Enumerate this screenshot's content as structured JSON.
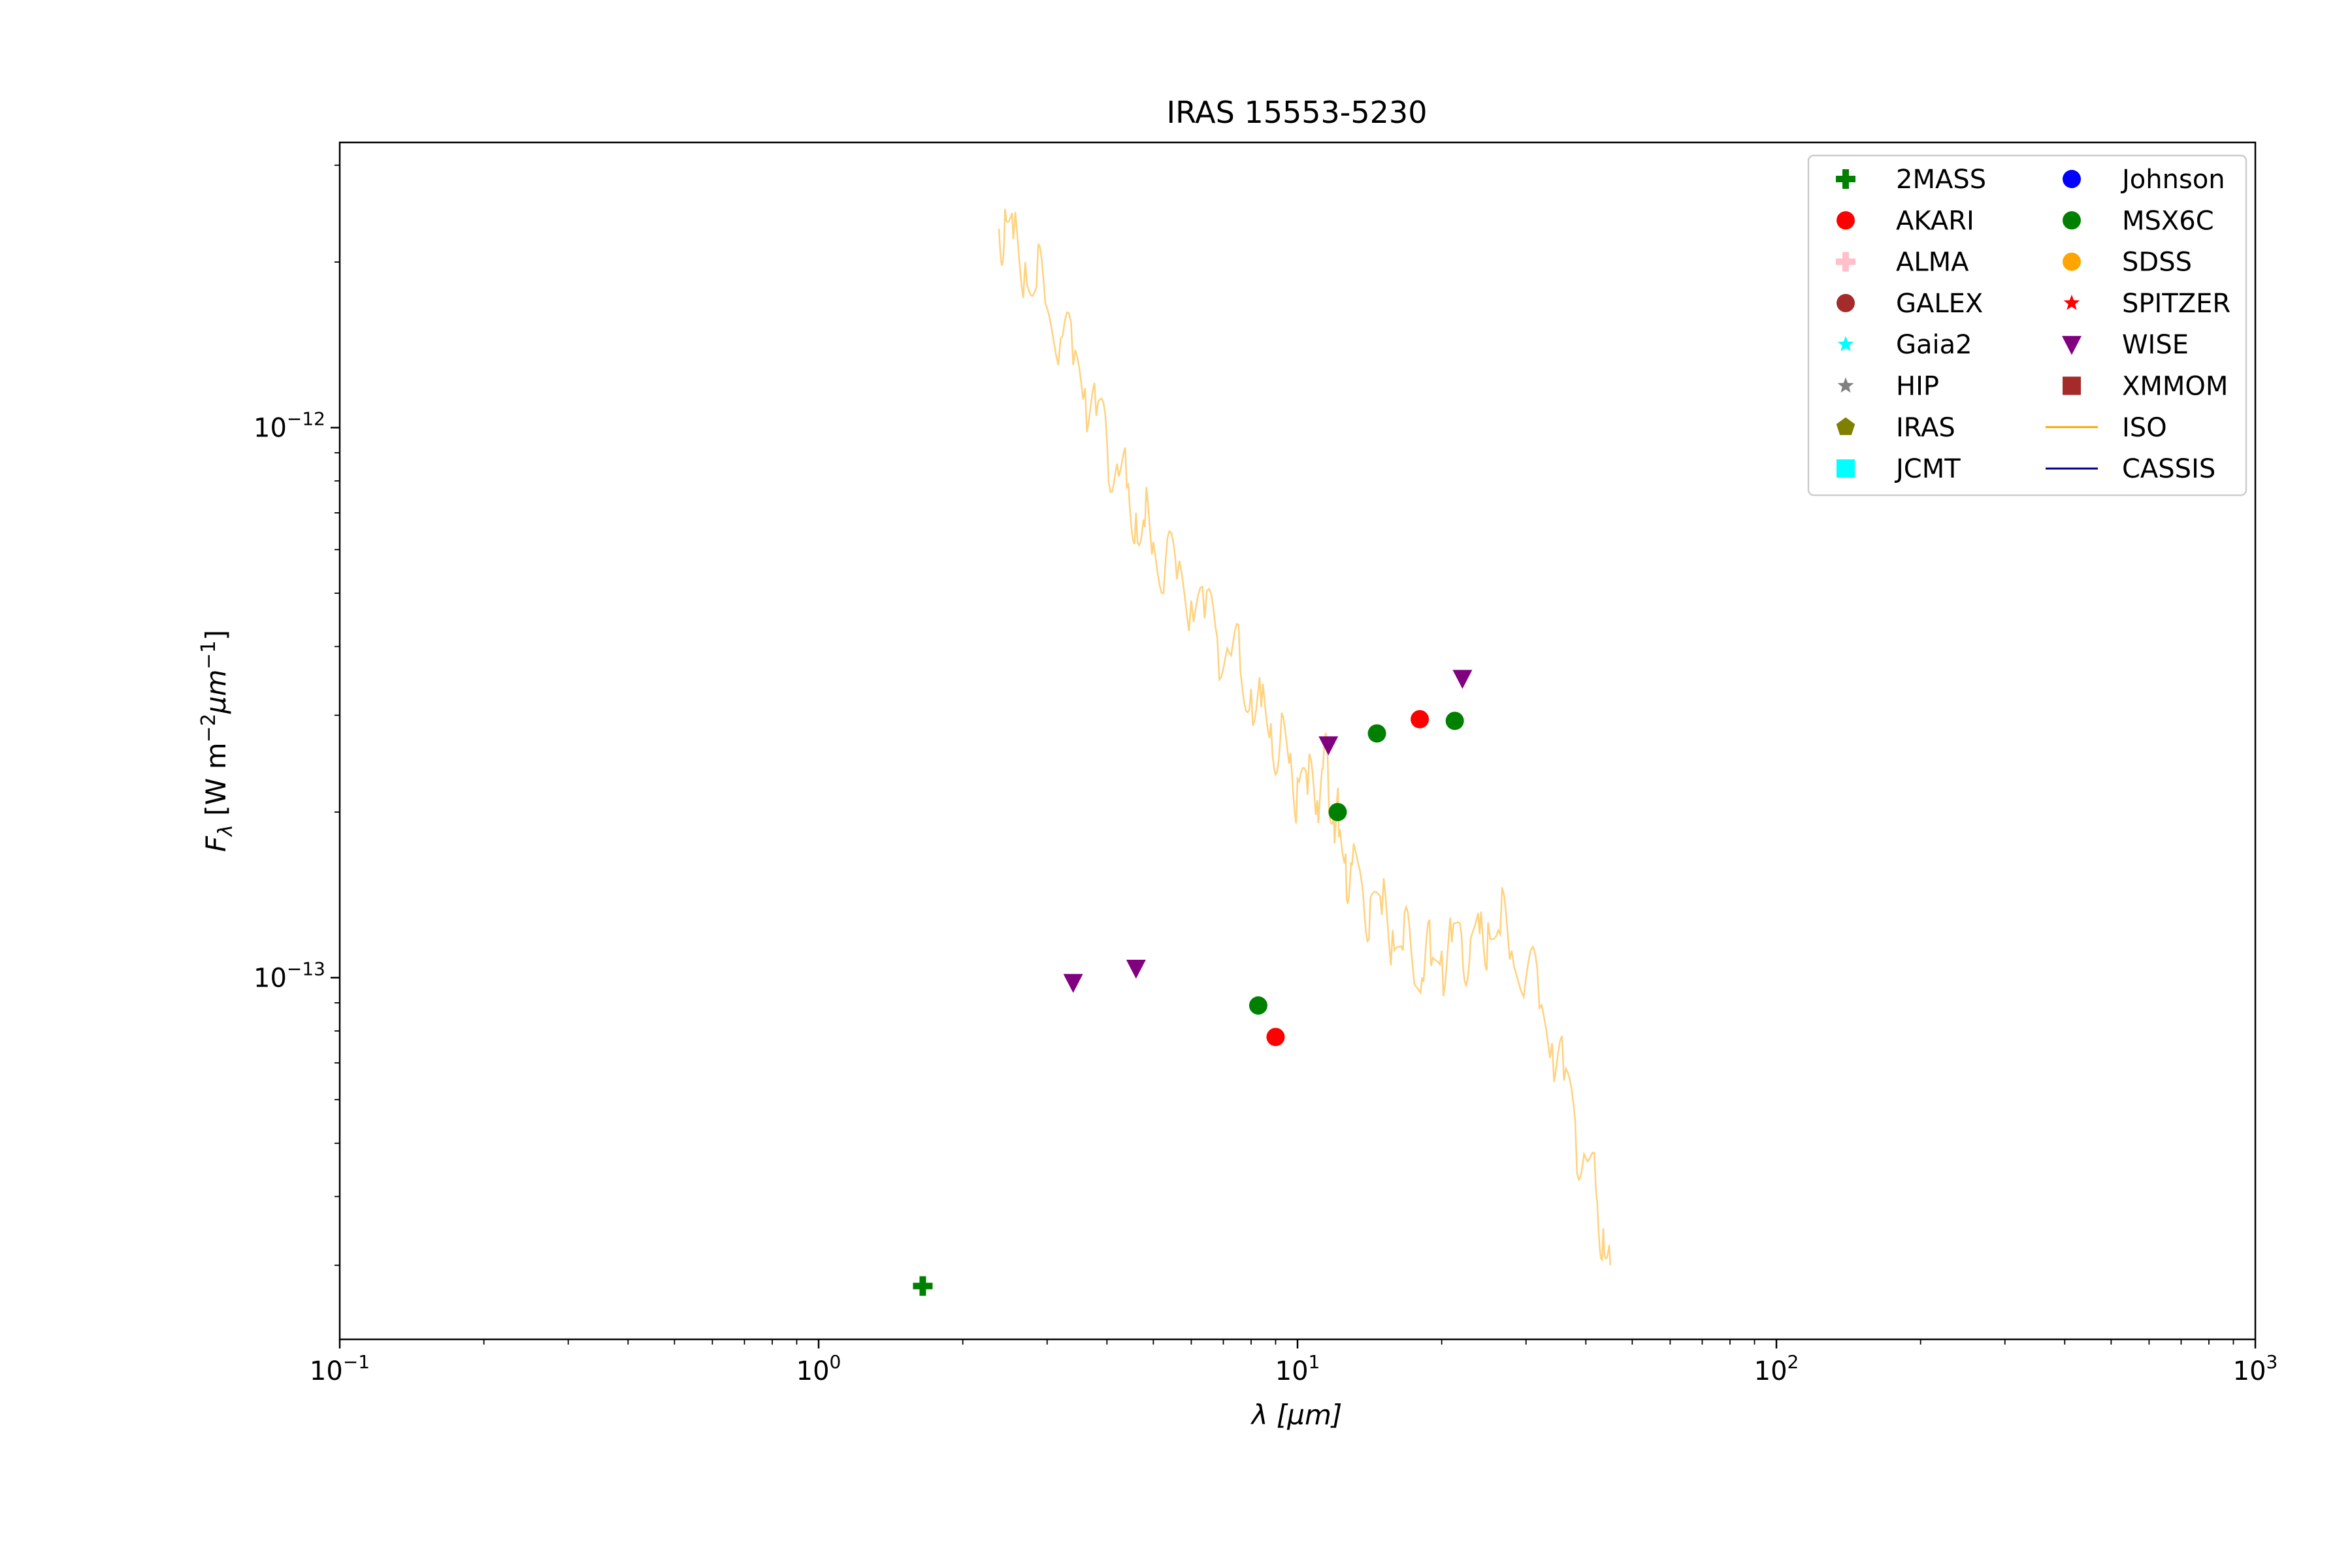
{
  "chart_data": {
    "type": "scatter",
    "title": "IRAS 15553-5230",
    "x_scale": "log",
    "y_scale": "log",
    "xlim": [
      0.1,
      1000
    ],
    "ylim": [
      2.2e-14,
      3.3e-12
    ],
    "xlabel": "λ [μm]",
    "ylabel": {
      "main": "F",
      "sub": "λ",
      "units_a": " [W m",
      "exp_a": "−2",
      "units_b": "μm",
      "exp_b": "−1",
      "units_c": "]"
    },
    "x_ticks": [
      {
        "value": 0.1,
        "base": "10",
        "exp": "−1"
      },
      {
        "value": 1,
        "base": "10",
        "exp": "0"
      },
      {
        "value": 10,
        "base": "10",
        "exp": "1"
      },
      {
        "value": 100,
        "base": "10",
        "exp": "2"
      },
      {
        "value": 1000,
        "base": "10",
        "exp": "3"
      }
    ],
    "y_ticks": [
      {
        "value": 1e-12,
        "base": "10",
        "exp": "−12"
      },
      {
        "value": 1e-13,
        "base": "10",
        "exp": "−13"
      }
    ],
    "legend_position": "top-right",
    "legend": [
      {
        "name": "2MASS",
        "marker": "plus",
        "color": "#008000"
      },
      {
        "name": "AKARI",
        "marker": "circle",
        "color": "#ff0000"
      },
      {
        "name": "ALMA",
        "marker": "plus",
        "color": "#ffc0cb"
      },
      {
        "name": "GALEX",
        "marker": "circle",
        "color": "#a52a2a"
      },
      {
        "name": "Gaia2",
        "marker": "star",
        "color": "#00ffff"
      },
      {
        "name": "HIP",
        "marker": "star",
        "color": "#808080"
      },
      {
        "name": "IRAS",
        "marker": "pentagon",
        "color": "#808000"
      },
      {
        "name": "JCMT",
        "marker": "square",
        "color": "#00ffff"
      },
      {
        "name": "Johnson",
        "marker": "circle",
        "color": "#0000ff"
      },
      {
        "name": "MSX6C",
        "marker": "circle",
        "color": "#008000"
      },
      {
        "name": "SDSS",
        "marker": "circle",
        "color": "#ffa500"
      },
      {
        "name": "SPITZER",
        "marker": "star",
        "color": "#ff0000"
      },
      {
        "name": "WISE",
        "marker": "triangle-down",
        "color": "#800080"
      },
      {
        "name": "XMMOM",
        "marker": "square",
        "color": "#a52a2a"
      },
      {
        "name": "ISO",
        "marker": "line",
        "color": "#ffa500"
      },
      {
        "name": "CASSIS",
        "marker": "line",
        "color": "#00008b"
      }
    ],
    "points": [
      {
        "survey": "2MASS",
        "x": 1.65,
        "y": 2.75e-14
      },
      {
        "survey": "WISE",
        "x": 3.4,
        "y": 9.8e-14
      },
      {
        "survey": "WISE",
        "x": 4.6,
        "y": 1.04e-13
      },
      {
        "survey": "WISE",
        "x": 11.6,
        "y": 2.65e-13
      },
      {
        "survey": "WISE",
        "x": 22.1,
        "y": 3.5e-13
      },
      {
        "survey": "MSX6C",
        "x": 8.28,
        "y": 8.9e-14
      },
      {
        "survey": "MSX6C",
        "x": 12.13,
        "y": 2e-13
      },
      {
        "survey": "MSX6C",
        "x": 14.65,
        "y": 2.78e-13
      },
      {
        "survey": "MSX6C",
        "x": 21.3,
        "y": 2.93e-13
      },
      {
        "survey": "AKARI",
        "x": 9.0,
        "y": 7.8e-14
      },
      {
        "survey": "AKARI",
        "x": 18.0,
        "y": 2.95e-13
      }
    ],
    "iso_spectrum": {
      "name": "ISO",
      "color": "#ffa500",
      "x": [
        2.38,
        2.45,
        2.55,
        2.7,
        2.85,
        3.0,
        3.2,
        3.4,
        3.6,
        3.8,
        4.0,
        4.2,
        4.4,
        4.6,
        4.8,
        5.0,
        5.3,
        5.6,
        6.0,
        6.4,
        6.8,
        7.2,
        7.6,
        8.0,
        8.4,
        8.8,
        9.2,
        9.6,
        10.0,
        10.5,
        11.0,
        11.3,
        11.6,
        11.9,
        12.2,
        12.6,
        13.0,
        13.6,
        14.2,
        15.0,
        15.8,
        16.6,
        17.4,
        18.2,
        19.0,
        20.0,
        21.0,
        22.0,
        23.0,
        24.0,
        25.0,
        26.5,
        28.0,
        30.0,
        32.0,
        34.0,
        36.0,
        38.0,
        40.0,
        42.0,
        43.5,
        45.0
      ],
      "y": [
        2.3e-12,
        2.5e-12,
        2.2e-12,
        2e-12,
        1.8e-12,
        1.65e-12,
        1.45e-12,
        1.3e-12,
        1.18e-12,
        1.05e-12,
        9.5e-13,
        8.6e-13,
        7.8e-13,
        7e-13,
        6.6e-13,
        6.2e-13,
        5.7e-13,
        5.3e-13,
        4.85e-13,
        4.5e-13,
        4.15e-13,
        3.9e-13,
        3.6e-13,
        3.35e-13,
        3.1e-13,
        2.9e-13,
        2.7e-13,
        2.45e-13,
        2.3e-13,
        2.15e-13,
        2.1e-13,
        2.4e-13,
        2.2e-13,
        2e-13,
        1.8e-13,
        1.68e-13,
        1.6e-13,
        1.5e-13,
        1.4e-13,
        1.3e-13,
        1.22e-13,
        1.12e-13,
        1.05e-13,
        1e-13,
        1.05e-13,
        1.12e-13,
        1.16e-13,
        1.2e-13,
        1.18e-13,
        1.2e-13,
        1.26e-13,
        1.2e-13,
        1.12e-13,
        1e-13,
        8.8e-14,
        7.6e-14,
        6.5e-14,
        5.5e-14,
        4.7e-14,
        4.1e-14,
        3.5e-14,
        3e-14
      ]
    }
  }
}
